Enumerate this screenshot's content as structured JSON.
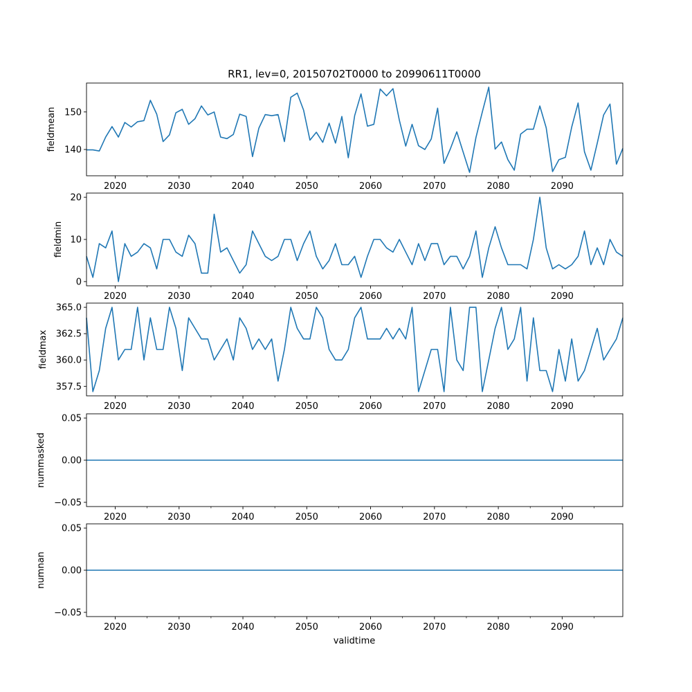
{
  "figure": {
    "title": "RR1, lev=0, 20150702T0000 to 20990611T0000",
    "xlabel": "validtime",
    "line_color": "#1f77b4"
  },
  "chart_data": [
    {
      "type": "line",
      "ylabel": "fieldmean",
      "xlim": [
        2015.5,
        2099.5
      ],
      "ylim": [
        133,
        157.7
      ],
      "yticks": [
        140,
        150
      ],
      "ytick_labels": [
        "140",
        "150"
      ],
      "xticks": [
        2020,
        2030,
        2040,
        2050,
        2060,
        2070,
        2080,
        2090
      ],
      "xtick_labels": [
        "2020",
        "2030",
        "2040",
        "2050",
        "2060",
        "2070",
        "2080",
        "2090"
      ],
      "x_start": 2015.5,
      "x_step": 1,
      "values": [
        139.9,
        139.9,
        139.6,
        143.3,
        146.1,
        143.3,
        147.2,
        146.0,
        147.4,
        147.7,
        153.1,
        149.4,
        142.1,
        143.9,
        149.8,
        150.7,
        146.7,
        148.2,
        151.6,
        149.2,
        150.0,
        143.3,
        142.9,
        144.0,
        149.4,
        148.8,
        138.1,
        145.7,
        149.3,
        149.0,
        149.3,
        142.1,
        153.9,
        155.0,
        150.5,
        142.5,
        144.6,
        141.9,
        147.0,
        141.7,
        148.8,
        137.8,
        149.0,
        154.8,
        146.2,
        146.7,
        156.1,
        154.3,
        156.2,
        147.8,
        140.9,
        146.7,
        141.0,
        140.0,
        142.8,
        151.0,
        136.3,
        140.2,
        144.7,
        139.3,
        133.9,
        143.2,
        150.0,
        156.6,
        140.1,
        142.0,
        137.3,
        134.5,
        144.1,
        145.4,
        145.4,
        151.6,
        145.8,
        134.1,
        137.3,
        137.9,
        146.0,
        152.4,
        139.4,
        134.5,
        141.7,
        149.2,
        152.1,
        136.1,
        140.3
      ]
    },
    {
      "type": "line",
      "ylabel": "fieldmin",
      "xlim": [
        2015.5,
        2099.5
      ],
      "ylim": [
        -1,
        21
      ],
      "yticks": [
        0,
        10,
        20
      ],
      "ytick_labels": [
        "0",
        "10",
        "20"
      ],
      "xticks": [
        2020,
        2030,
        2040,
        2050,
        2060,
        2070,
        2080,
        2090
      ],
      "xtick_labels": [
        "2020",
        "2030",
        "2040",
        "2050",
        "2060",
        "2070",
        "2080",
        "2090"
      ],
      "x_start": 2015.5,
      "x_step": 1,
      "values": [
        6,
        1,
        9,
        8,
        12,
        0,
        9,
        6,
        7,
        9,
        8,
        3,
        10,
        10,
        7,
        6,
        11,
        9,
        2,
        2,
        16,
        7,
        8,
        5,
        2,
        4,
        12,
        9,
        6,
        5,
        6,
        10,
        10,
        5,
        9,
        12,
        6,
        3,
        5,
        9,
        4,
        4,
        6,
        1,
        6,
        10,
        10,
        8,
        7,
        10,
        7,
        4,
        9,
        5,
        9,
        9,
        4,
        6,
        6,
        3,
        6,
        12,
        1,
        8,
        13,
        8,
        4,
        4,
        4,
        3,
        10,
        20,
        8,
        3,
        4,
        3,
        4,
        6,
        12,
        4,
        8,
        4,
        10,
        7,
        6
      ]
    },
    {
      "type": "line",
      "ylabel": "fieldmax",
      "xlim": [
        2015.5,
        2099.5
      ],
      "ylim": [
        356.6,
        365.4
      ],
      "yticks": [
        357.5,
        360.0,
        362.5,
        365.0
      ],
      "ytick_labels": [
        "357.5",
        "360.0",
        "362.5",
        "365.0"
      ],
      "xticks": [
        2020,
        2030,
        2040,
        2050,
        2060,
        2070,
        2080,
        2090
      ],
      "xtick_labels": [
        "2020",
        "2030",
        "2040",
        "2050",
        "2060",
        "2070",
        "2080",
        "2090"
      ],
      "x_start": 2015.5,
      "x_step": 1,
      "values": [
        364,
        357,
        359,
        363,
        365,
        360,
        361,
        361,
        365,
        360,
        364,
        361,
        361,
        365,
        363,
        359,
        364,
        363,
        362,
        362,
        360,
        361,
        362,
        360,
        364,
        363,
        361,
        362,
        361,
        362,
        358,
        361,
        365,
        363,
        362,
        362,
        365,
        364,
        361,
        360,
        360,
        361,
        364,
        365,
        362,
        362,
        362,
        363,
        362,
        363,
        362,
        365,
        357,
        359,
        361,
        361,
        357,
        365,
        360,
        359,
        365,
        365,
        357,
        360,
        363,
        365,
        361,
        362,
        365,
        358,
        364,
        359,
        359,
        357,
        361,
        358,
        362,
        358,
        359,
        361,
        363,
        360,
        361,
        362,
        364
      ]
    },
    {
      "type": "line",
      "ylabel": "nummasked",
      "xlim": [
        2015.5,
        2099.5
      ],
      "ylim": [
        -0.055,
        0.055
      ],
      "yticks": [
        -0.05,
        0.0,
        0.05
      ],
      "ytick_labels": [
        "−0.05",
        "0.00",
        "0.05"
      ],
      "xticks": [
        2020,
        2030,
        2040,
        2050,
        2060,
        2070,
        2080,
        2090
      ],
      "xtick_labels": [
        "2020",
        "2030",
        "2040",
        "2050",
        "2060",
        "2070",
        "2080",
        "2090"
      ],
      "x_start": 2015.5,
      "x_step": 84,
      "values": [
        0,
        0
      ]
    },
    {
      "type": "line",
      "ylabel": "numnan",
      "xlim": [
        2015.5,
        2099.5
      ],
      "ylim": [
        -0.055,
        0.055
      ],
      "yticks": [
        -0.05,
        0.0,
        0.05
      ],
      "ytick_labels": [
        "−0.05",
        "0.00",
        "0.05"
      ],
      "xticks": [
        2020,
        2030,
        2040,
        2050,
        2060,
        2070,
        2080,
        2090
      ],
      "xtick_labels": [
        "2020",
        "2030",
        "2040",
        "2050",
        "2060",
        "2070",
        "2080",
        "2090"
      ],
      "x_start": 2015.5,
      "x_step": 84,
      "values": [
        0,
        0
      ]
    }
  ]
}
